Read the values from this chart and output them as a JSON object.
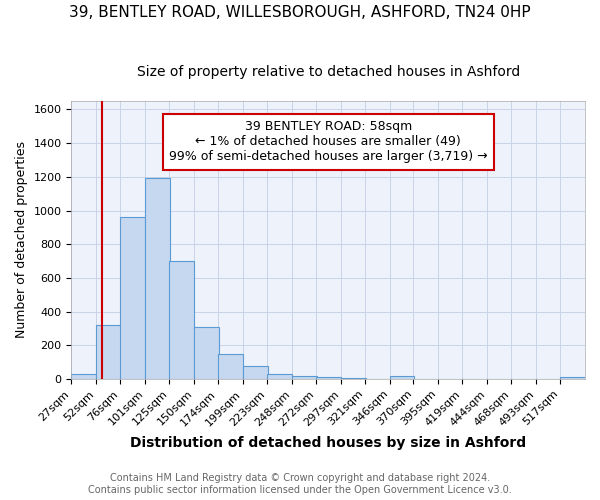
{
  "title_line1": "39, BENTLEY ROAD, WILLESBOROUGH, ASHFORD, TN24 0HP",
  "title_line2": "Size of property relative to detached houses in Ashford",
  "xlabel": "Distribution of detached houses by size in Ashford",
  "ylabel": "Number of detached properties",
  "bin_labels": [
    "27sqm",
    "52sqm",
    "76sqm",
    "101sqm",
    "125sqm",
    "150sqm",
    "174sqm",
    "199sqm",
    "223sqm",
    "248sqm",
    "272sqm",
    "297sqm",
    "321sqm",
    "346sqm",
    "370sqm",
    "395sqm",
    "419sqm",
    "444sqm",
    "468sqm",
    "493sqm",
    "517sqm"
  ],
  "bin_values": [
    30,
    320,
    960,
    1195,
    700,
    310,
    150,
    75,
    30,
    15,
    10,
    5,
    0,
    15,
    0,
    0,
    0,
    0,
    0,
    0,
    10
  ],
  "bar_color": "#c6d8f0",
  "bar_edge_color": "#5b9bd5",
  "figure_bg": "#ffffff",
  "axes_bg": "#edf2fb",
  "grid_color": "#c8d4e8",
  "ylim": [
    0,
    1650
  ],
  "yticks": [
    0,
    200,
    400,
    600,
    800,
    1000,
    1200,
    1400,
    1600
  ],
  "property_size": 58,
  "property_label": "39 BENTLEY ROAD: 58sqm",
  "annotation_line1": "← 1% of detached houses are smaller (49)",
  "annotation_line2": "99% of semi-detached houses are larger (3,719) →",
  "red_line_color": "#cc0000",
  "annotation_box_edge": "#cc0000",
  "footnote_line1": "Contains HM Land Registry data © Crown copyright and database right 2024.",
  "footnote_line2": "Contains public sector information licensed under the Open Government Licence v3.0.",
  "title1_fontsize": 11,
  "title2_fontsize": 10,
  "xlabel_fontsize": 10,
  "ylabel_fontsize": 9,
  "tick_fontsize": 8,
  "annot_fontsize": 9,
  "footnote_fontsize": 7
}
